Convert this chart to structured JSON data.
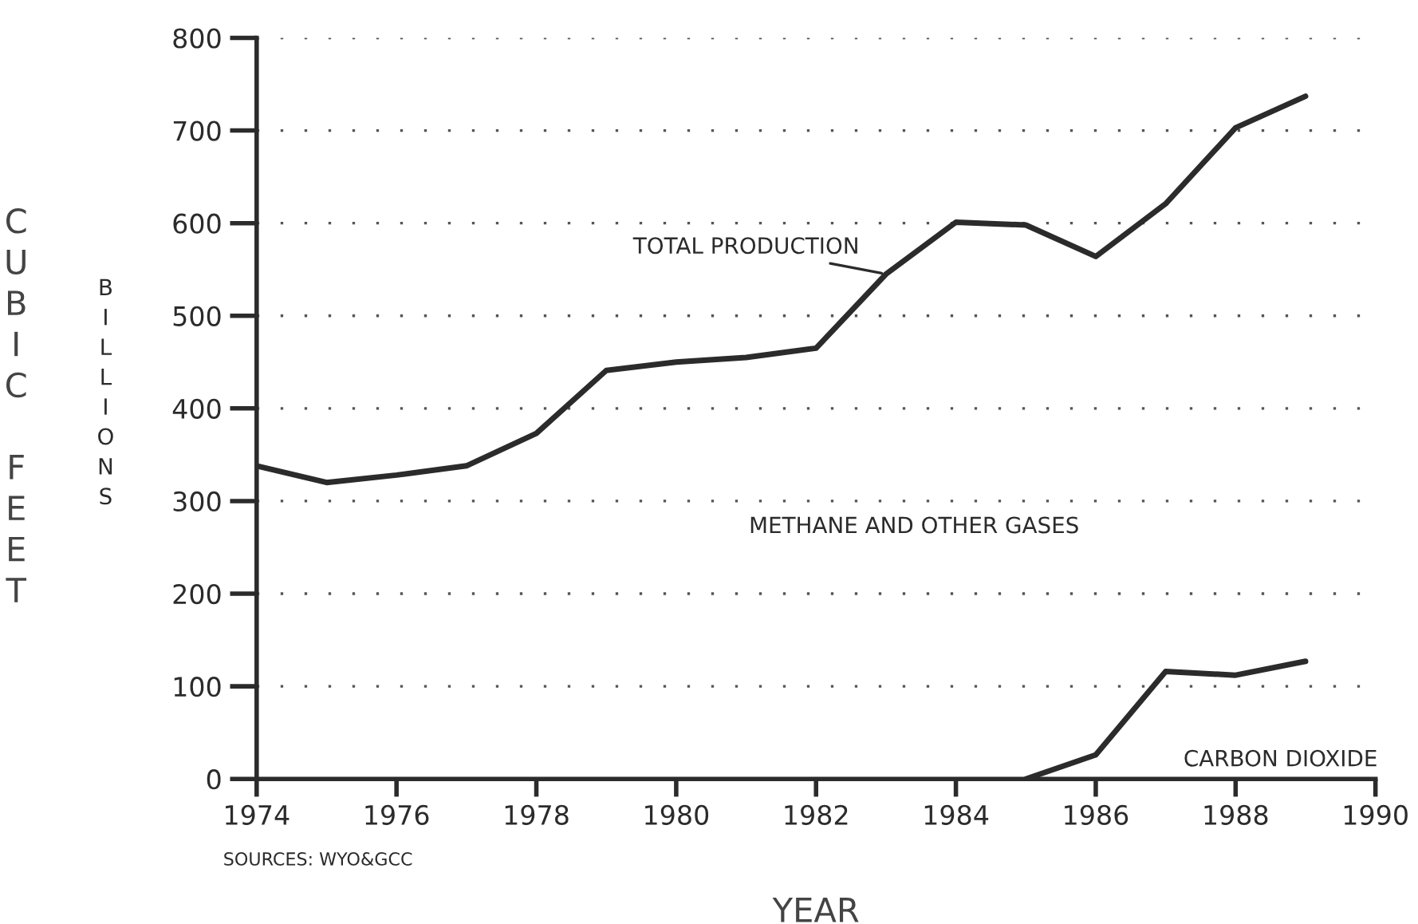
{
  "chart_data": {
    "type": "line",
    "xlabel": "YEAR",
    "ylabel": "CUBIC FEET",
    "x": [
      1974,
      1975,
      1976,
      1977,
      1978,
      1979,
      1980,
      1981,
      1982,
      1983,
      1984,
      1985,
      1986,
      1987,
      1988,
      1989
    ],
    "series": [
      {
        "name": "TOTAL PRODUCTION",
        "color": "#2b2b2b",
        "values": [
          338,
          320,
          328,
          338,
          373,
          441,
          450,
          455,
          465,
          545,
          601,
          598,
          564,
          621,
          703,
          737
        ]
      },
      {
        "name": "CARBON DIOXIDE",
        "color": "#2b2b2b",
        "x": [
          1985,
          1986,
          1987,
          1988,
          1989
        ],
        "values": [
          0,
          26,
          116,
          112,
          127
        ]
      }
    ],
    "annotations": [
      "BILLIONS",
      "METHANE AND OTHER GASES",
      "SOURCES: WYO&GCC"
    ],
    "xlim": [
      1974,
      1990
    ],
    "xticks": [
      1974,
      1976,
      1978,
      1980,
      1982,
      1984,
      1986,
      1988,
      1990
    ],
    "ylim": [
      0,
      800
    ],
    "yticks": [
      0,
      100,
      200,
      300,
      400,
      500,
      600,
      700,
      800
    ],
    "grid": "y",
    "legend": false,
    "marker": "none",
    "line_style": "solid"
  }
}
